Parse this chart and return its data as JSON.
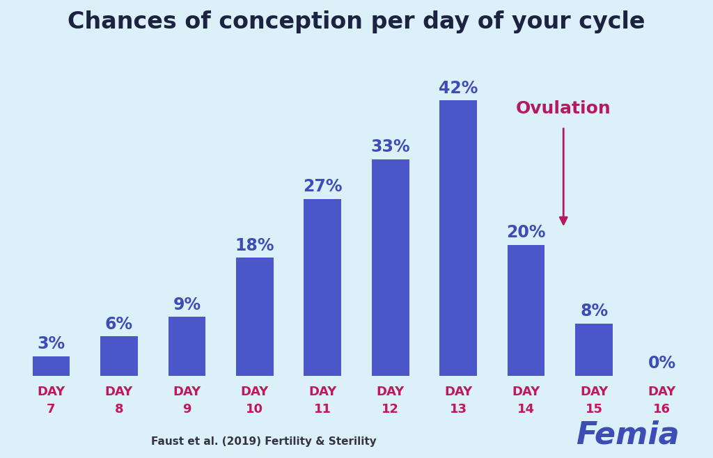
{
  "title": "Chances of conception per day of your cycle",
  "days": [
    "DAY\n7",
    "DAY\n8",
    "DAY\n9",
    "DAY\n10",
    "DAY\n11",
    "DAY\n12",
    "DAY\n13",
    "DAY\n14",
    "DAY\n15",
    "DAY\n16"
  ],
  "values": [
    3,
    6,
    9,
    18,
    27,
    33,
    42,
    20,
    8,
    0
  ],
  "bar_color": "#4B56C8",
  "background_color": "#DCF0FA",
  "title_color": "#1C2340",
  "label_color": "#3D4DB5",
  "xlabel_color": "#C2185B",
  "ovulation_text_color": "#B5195F",
  "ovulation_arrow_color": "#B5195F",
  "femia_color": "#3D4DB5",
  "citation_color": "#333344",
  "citation": "Faust et al. (2019) Fertility & Sterility",
  "femia_text": "Femia",
  "ovulation_label": "Ovulation",
  "ovulation_bar_index": 7,
  "ylim": [
    0,
    50
  ],
  "bar_width": 0.55,
  "title_fontsize": 24,
  "label_fontsize": 17,
  "xlabel_fontsize": 13,
  "femia_fontsize": 32,
  "citation_fontsize": 11
}
